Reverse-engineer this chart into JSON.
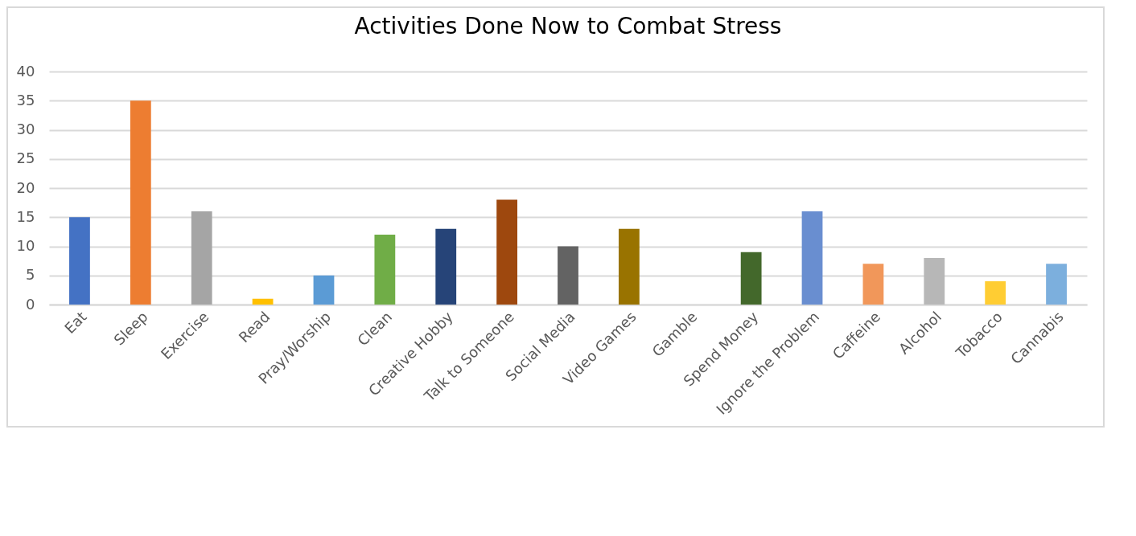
{
  "chart_data": {
    "type": "bar",
    "title": "Activities Done Now to Combat Stress",
    "categories": [
      "Eat",
      "Sleep",
      "Exercise",
      "Read",
      "Pray/Worship",
      "Clean",
      "Creative Hobby",
      "Talk to Someone",
      "Social Media",
      "Video Games",
      "Gamble",
      "Spend Money",
      "Ignore the Problem",
      "Caffeine",
      "Alcohol",
      "Tobacco",
      "Cannabis"
    ],
    "values": [
      15,
      35,
      16,
      1,
      5,
      12,
      13,
      18,
      10,
      13,
      0,
      9,
      16,
      7,
      8,
      4,
      7
    ],
    "colors": [
      "#4472c4",
      "#ed7d31",
      "#a5a5a5",
      "#ffc000",
      "#5b9bd5",
      "#70ad47",
      "#264478",
      "#9e480e",
      "#636363",
      "#997300",
      "#255e91",
      "#43682b",
      "#698ed0",
      "#f1975a",
      "#b7b7b7",
      "#ffcd33",
      "#7cafdd"
    ],
    "ylim": [
      0,
      40
    ],
    "yticks": [
      0,
      5,
      10,
      15,
      20,
      25,
      30,
      35,
      40
    ],
    "grid": "y"
  }
}
